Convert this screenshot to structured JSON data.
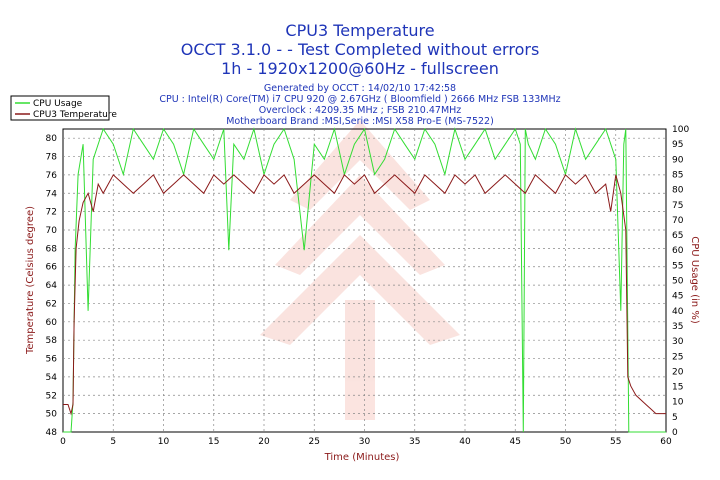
{
  "chart_data": {
    "type": "line",
    "title": "CPU3 Temperature",
    "subtitle_lines": [
      "OCCT 3.1.0 -  - Test Completed without errors",
      "1h - 1920x1200@60Hz - fullscreen"
    ],
    "info_lines": [
      "Generated by OCCT : 14/02/10 17:42:58",
      "CPU : Intel(R) Core(TM) i7 CPU 920 @ 2.67GHz ( Bloomfield ) 2666 MHz FSB 133MHz",
      "Overclock : 4209.35 MHz ; FSB 210.47MHz",
      "Motherboard Brand :MSI,Serie :MSI X58 Pro-E (MS-7522)"
    ],
    "xlabel": "Time (Minutes)",
    "ylabel_left": "Temperature (Celsius degree)",
    "ylabel_right": "CPU Usage (in %)",
    "xlim": [
      0,
      60
    ],
    "ylim_left": [
      48,
      81
    ],
    "ylim_right": [
      0,
      100
    ],
    "x_ticks": [
      0,
      5,
      10,
      15,
      20,
      25,
      30,
      35,
      40,
      45,
      50,
      55,
      60
    ],
    "y_ticks_left": [
      48,
      50,
      52,
      54,
      56,
      58,
      60,
      62,
      64,
      66,
      68,
      70,
      72,
      74,
      76,
      78,
      80
    ],
    "y_ticks_right": [
      0,
      5,
      10,
      15,
      20,
      25,
      30,
      35,
      40,
      45,
      50,
      55,
      60,
      65,
      70,
      75,
      80,
      85,
      90,
      95,
      100
    ],
    "grid": true,
    "legend_position": "top-left",
    "series": [
      {
        "name": "CPU Usage",
        "axis": "right",
        "color": "#33dd33",
        "x": [
          0,
          0.8,
          1.0,
          1.2,
          1.5,
          2.0,
          2.5,
          3.0,
          4.0,
          5.0,
          6.0,
          7.0,
          8.0,
          9.0,
          10.0,
          11.0,
          12.0,
          13.0,
          14.0,
          15.0,
          16.0,
          16.5,
          17.0,
          18.0,
          19.0,
          20.0,
          21.0,
          22.0,
          23.0,
          24.0,
          25.0,
          26.0,
          27.0,
          28.0,
          29.0,
          30.0,
          31.0,
          32.0,
          33.0,
          34.0,
          35.0,
          36.0,
          37.0,
          38.0,
          39.0,
          40.0,
          41.0,
          42.0,
          43.0,
          44.0,
          45.0,
          45.5,
          45.8,
          46.0,
          46.3,
          47.0,
          48.0,
          49.0,
          50.0,
          51.0,
          52.0,
          53.0,
          54.0,
          55.0,
          55.5,
          55.8,
          56.0,
          56.3,
          57.0,
          58.0,
          60.0
        ],
        "values": [
          0,
          0,
          10,
          60,
          85,
          95,
          40,
          90,
          100,
          95,
          85,
          100,
          95,
          90,
          100,
          95,
          85,
          100,
          95,
          90,
          100,
          60,
          95,
          90,
          100,
          85,
          95,
          100,
          90,
          60,
          95,
          90,
          100,
          85,
          95,
          100,
          85,
          90,
          100,
          95,
          90,
          100,
          95,
          85,
          100,
          90,
          95,
          100,
          90,
          95,
          100,
          95,
          0,
          100,
          95,
          90,
          100,
          95,
          85,
          100,
          90,
          95,
          100,
          90,
          40,
          95,
          100,
          0,
          0,
          0,
          0
        ]
      },
      {
        "name": "CPU3 Temperature",
        "axis": "left",
        "color": "#8b1a1a",
        "x": [
          0,
          0.5,
          0.8,
          1.0,
          1.1,
          1.3,
          1.6,
          2.0,
          2.5,
          3.0,
          3.5,
          4.0,
          5.0,
          6.0,
          7.0,
          8.0,
          9.0,
          10.0,
          11.0,
          12.0,
          13.0,
          14.0,
          15.0,
          16.0,
          17.0,
          18.0,
          19.0,
          20.0,
          21.0,
          22.0,
          23.0,
          24.0,
          25.0,
          26.0,
          27.0,
          28.0,
          29.0,
          30.0,
          31.0,
          32.0,
          33.0,
          34.0,
          35.0,
          36.0,
          37.0,
          38.0,
          39.0,
          40.0,
          41.0,
          42.0,
          43.0,
          44.0,
          45.0,
          46.0,
          47.0,
          48.0,
          49.0,
          50.0,
          51.0,
          52.0,
          53.0,
          54.0,
          54.5,
          55.0,
          55.5,
          56.0,
          56.2,
          56.5,
          57.0,
          57.5,
          58.0,
          58.5,
          59.0,
          60.0
        ],
        "values": [
          51,
          51,
          50,
          51,
          60,
          68,
          71,
          73,
          74,
          72,
          75,
          74,
          76,
          75,
          74,
          75,
          76,
          74,
          75,
          76,
          75,
          74,
          76,
          75,
          76,
          75,
          74,
          76,
          75,
          76,
          74,
          75,
          76,
          75,
          74,
          76,
          75,
          76,
          74,
          75,
          76,
          75,
          74,
          76,
          75,
          74,
          76,
          75,
          76,
          74,
          75,
          76,
          75,
          74,
          76,
          75,
          74,
          76,
          75,
          76,
          74,
          75,
          72,
          76,
          74,
          70,
          54,
          53,
          52,
          51.5,
          51,
          50.5,
          50,
          50
        ]
      }
    ]
  }
}
